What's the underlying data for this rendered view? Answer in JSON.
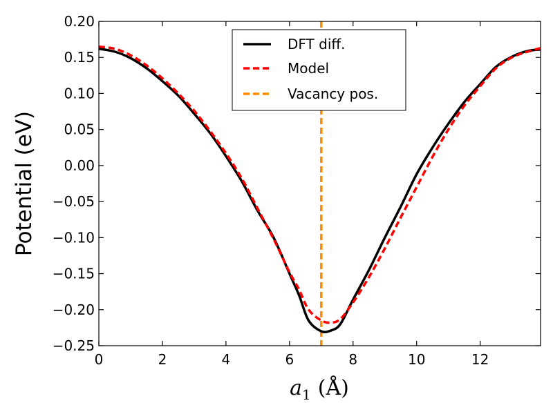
{
  "chart_data": {
    "type": "line",
    "title": "",
    "xlabel_symbol": "a",
    "xlabel_subscript": "1",
    "xlabel_unit": "(Å)",
    "ylabel": "Potential (eV)",
    "xlim": [
      0,
      13.9
    ],
    "ylim": [
      -0.25,
      0.2
    ],
    "x_ticks": [
      0,
      2,
      4,
      6,
      8,
      10,
      12
    ],
    "x_tick_labels": [
      "0",
      "2",
      "4",
      "6",
      "8",
      "10",
      "12"
    ],
    "y_ticks": [
      0.2,
      0.15,
      0.1,
      0.05,
      0.0,
      -0.05,
      -0.1,
      -0.15,
      -0.2,
      -0.25
    ],
    "y_tick_labels": [
      "0.20",
      "0.15",
      "0.10",
      "0.05",
      "0.00",
      "−0.05",
      "−0.10",
      "−0.15",
      "−0.20",
      "−0.25"
    ],
    "grid": false,
    "legend_position": "top-center",
    "series": [
      {
        "name": "DFT diff.",
        "color": "#000000",
        "style": "solid",
        "x": [
          0,
          0.5,
          1.0,
          1.5,
          2.0,
          2.5,
          3.0,
          3.5,
          4.0,
          4.5,
          5.0,
          5.5,
          6.0,
          6.3,
          6.6,
          7.0,
          7.3,
          7.6,
          8.0,
          8.5,
          9.0,
          9.5,
          10.0,
          10.5,
          11.0,
          11.5,
          12.0,
          12.5,
          13.0,
          13.5,
          13.9
        ],
        "y": [
          0.162,
          0.158,
          0.149,
          0.135,
          0.117,
          0.097,
          0.072,
          0.045,
          0.013,
          -0.022,
          -0.063,
          -0.1,
          -0.15,
          -0.18,
          -0.215,
          -0.23,
          -0.229,
          -0.22,
          -0.186,
          -0.145,
          -0.1,
          -0.057,
          -0.012,
          0.025,
          0.058,
          0.088,
          0.113,
          0.137,
          0.151,
          0.159,
          0.161
        ]
      },
      {
        "name": "Model",
        "color": "#ff0000",
        "style": "dashed",
        "x": [
          0,
          0.5,
          1.0,
          1.5,
          2.0,
          2.5,
          3.0,
          3.5,
          4.0,
          4.5,
          5.0,
          5.5,
          6.0,
          6.3,
          6.6,
          7.0,
          7.3,
          7.6,
          8.0,
          8.5,
          9.0,
          9.5,
          10.0,
          10.5,
          11.0,
          11.5,
          12.0,
          12.5,
          13.0,
          13.5,
          13.9
        ],
        "y": [
          0.165,
          0.162,
          0.153,
          0.139,
          0.121,
          0.1,
          0.076,
          0.048,
          0.017,
          -0.018,
          -0.06,
          -0.102,
          -0.148,
          -0.172,
          -0.2,
          -0.215,
          -0.218,
          -0.213,
          -0.19,
          -0.155,
          -0.115,
          -0.072,
          -0.03,
          0.012,
          0.05,
          0.083,
          0.11,
          0.135,
          0.15,
          0.158,
          0.163
        ]
      },
      {
        "name": "Vacancy pos.",
        "color": "#ff8c00",
        "style": "dashed",
        "vertical_x": 7.0
      }
    ]
  }
}
